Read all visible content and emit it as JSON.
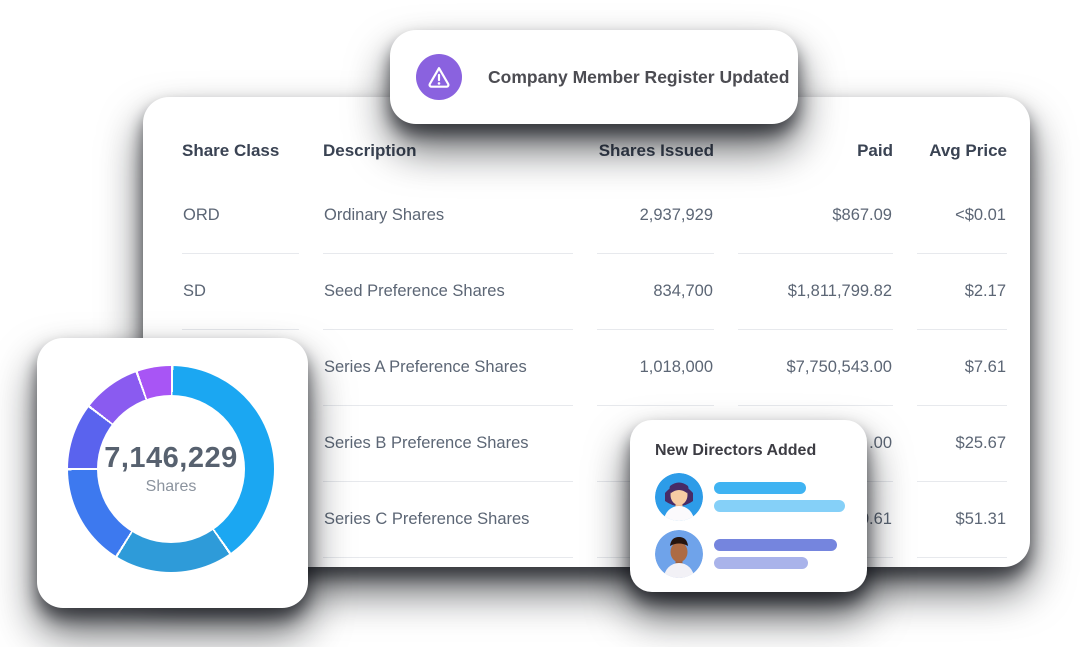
{
  "toast": {
    "title": "Company Member Register Updated",
    "icon": "alert-triangle-icon",
    "icon_bg_color": "#8A62DF"
  },
  "table": {
    "columns": [
      {
        "label": "Share Class"
      },
      {
        "label": "Description"
      },
      {
        "label": "Shares Issued"
      },
      {
        "label": "Paid"
      },
      {
        "label": "Avg Price"
      }
    ],
    "rows": [
      {
        "share_class": "ORD",
        "description": "Ordinary Shares",
        "shares_issued": "2,937,929",
        "paid": "$867.09",
        "avg_price": "<$0.01"
      },
      {
        "share_class": "SD",
        "description": "Seed Preference Shares",
        "shares_issued": "834,700",
        "paid": "$1,811,799.82",
        "avg_price": "$2.17"
      },
      {
        "share_class": "",
        "description": "Series A Preference Shares",
        "shares_issued": "1,018,000",
        "paid": "$7,750,543.00",
        "avg_price": "$7.61"
      },
      {
        "share_class": "",
        "description": "Series B Preference Shares",
        "shares_issued": "",
        "paid": ".00",
        "avg_price": "$25.67"
      },
      {
        "share_class": "",
        "description": "Series C Preference Shares",
        "shares_issued": "",
        "paid": "0.61",
        "avg_price": "$51.31"
      }
    ]
  },
  "chart_data": {
    "type": "pie",
    "variant": "donut",
    "title": "",
    "center_label": "7,146,229",
    "center_sublabel": "Shares",
    "start_angle_deg": 0,
    "separator_color": "#FFFFFF",
    "segments": [
      {
        "name": "segment-1",
        "color": "#1BA7F2",
        "percent": 40.1
      },
      {
        "name": "segment-2",
        "color": "#2E9BD9",
        "percent": 18.6
      },
      {
        "name": "segment-3",
        "color": "#3D79EF",
        "percent": 16.1
      },
      {
        "name": "segment-4",
        "color": "#5A63EE",
        "percent": 10.4
      },
      {
        "name": "segment-5",
        "color": "#8A5BF0",
        "percent": 9.2
      },
      {
        "name": "segment-6",
        "color": "#A855F5",
        "percent": 5.6
      }
    ]
  },
  "directors": {
    "title": "New Directors Added",
    "rows": [
      {
        "avatar": "woman-avatar-icon",
        "bars": [
          {
            "width": 92,
            "color": "#3FB3F2"
          },
          {
            "width": 131,
            "color": "#85D0F8"
          }
        ]
      },
      {
        "avatar": "man-avatar-icon",
        "bars": [
          {
            "width": 123,
            "color": "#7585DE"
          },
          {
            "width": 94,
            "color": "#A9B3EA"
          }
        ]
      }
    ]
  }
}
